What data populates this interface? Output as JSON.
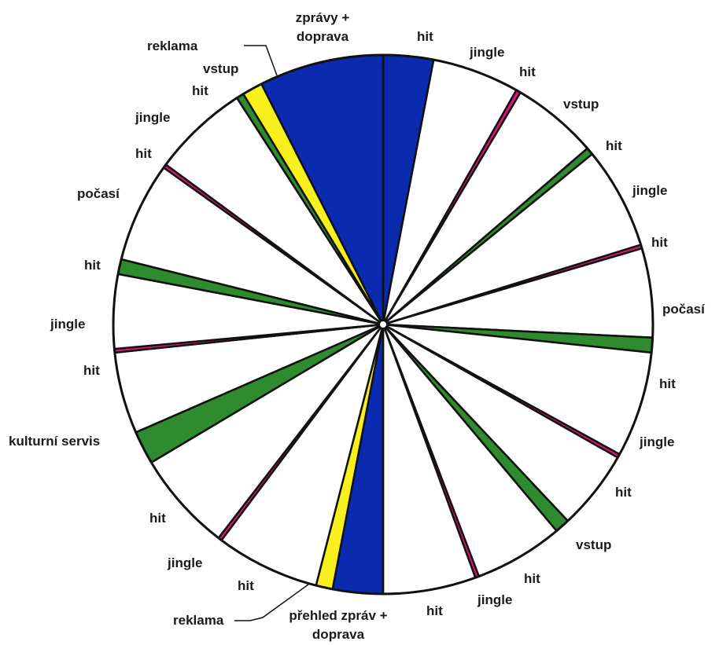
{
  "colors": {
    "zpravy": "#0a2bb0",
    "reklama": "#f7f01c",
    "vstup": "#2e8b2e",
    "jingle": "#e0147a",
    "hit": "#ffffff",
    "pocasi": "#2e8b2e",
    "kulturni": "#2e8b2e",
    "outline": "#111111"
  },
  "segments": [
    {
      "kind": "zpravy",
      "from": 0,
      "to": 27
    },
    {
      "kind": "hit",
      "from": 27,
      "to": 74
    },
    {
      "kind": "jingle",
      "from": 74,
      "to": 76.5
    },
    {
      "kind": "hit",
      "from": 76.5,
      "to": 123
    },
    {
      "kind": "vstup",
      "from": 123,
      "to": 127
    },
    {
      "kind": "hit",
      "from": 127,
      "to": 182
    },
    {
      "kind": "jingle",
      "from": 182,
      "to": 184
    },
    {
      "kind": "hit",
      "from": 184,
      "to": 232
    },
    {
      "kind": "pocasi",
      "from": 232,
      "to": 240
    },
    {
      "kind": "hit",
      "from": 240,
      "to": 297
    },
    {
      "kind": "jingle",
      "from": 297,
      "to": 299
    },
    {
      "kind": "hit",
      "from": 299,
      "to": 342
    },
    {
      "kind": "vstup",
      "from": 342,
      "to": 350
    },
    {
      "kind": "hit",
      "from": 350,
      "to": 398
    },
    {
      "kind": "jingle",
      "from": 398,
      "to": 400
    },
    {
      "kind": "hit",
      "from": 400,
      "to": 450
    },
    {
      "kind": "zpravy",
      "from": 450,
      "to": 477
    },
    {
      "kind": "reklama",
      "from": 477,
      "to": 486
    },
    {
      "kind": "hit",
      "from": 486,
      "to": 542
    },
    {
      "kind": "jingle",
      "from": 542,
      "to": 544
    },
    {
      "kind": "hit",
      "from": 544,
      "to": 598
    },
    {
      "kind": "kulturni",
      "from": 598,
      "to": 616
    },
    {
      "kind": "hit",
      "from": 616,
      "to": 660
    },
    {
      "kind": "jingle",
      "from": 660,
      "to": 662
    },
    {
      "kind": "hit",
      "from": 662,
      "to": 702
    },
    {
      "kind": "pocasi",
      "from": 702,
      "to": 710
    },
    {
      "kind": "hit",
      "from": 710,
      "to": 764
    },
    {
      "kind": "jingle",
      "from": 764,
      "to": 766
    },
    {
      "kind": "hit",
      "from": 766,
      "to": 818
    },
    {
      "kind": "vstup",
      "from": 818,
      "to": 822
    },
    {
      "kind": "reklama",
      "from": 822,
      "to": 833
    },
    {
      "kind": "zpravy",
      "from": 833,
      "to": 900
    }
  ],
  "labels": {
    "top_news_1": "zprávy +",
    "top_news_2": "doprava",
    "r_hit1": "hit",
    "r_jingle1": "jingle",
    "r_hit2": "hit",
    "r_vstup1": "vstup",
    "r_hit3": "hit",
    "r_jingle2": "jingle",
    "r_hit4": "hit",
    "r_pocasi": "počasí",
    "r_hit5": "hit",
    "r_jingle3": "jingle",
    "r_hit6": "hit",
    "r_vstup2": "vstup",
    "b_hit7": "hit",
    "b_jingle4": "jingle",
    "b_hit8": "hit",
    "b_news_1": "přehled zpráv +",
    "b_news_2": "doprava",
    "b_reklama": "reklama",
    "l_hit9": "hit",
    "l_jingle5": "jingle",
    "l_hit10": "hit",
    "l_kulturni": "kulturní servis",
    "l_hit11": "hit",
    "l_jingle6": "jingle",
    "l_hit12": "hit",
    "l_pocasi": "počasí",
    "l_hit13": "hit",
    "l_jingle7": "jingle",
    "l_hit14": "hit",
    "t_vstup": "vstup",
    "t_reklama": "reklama"
  }
}
